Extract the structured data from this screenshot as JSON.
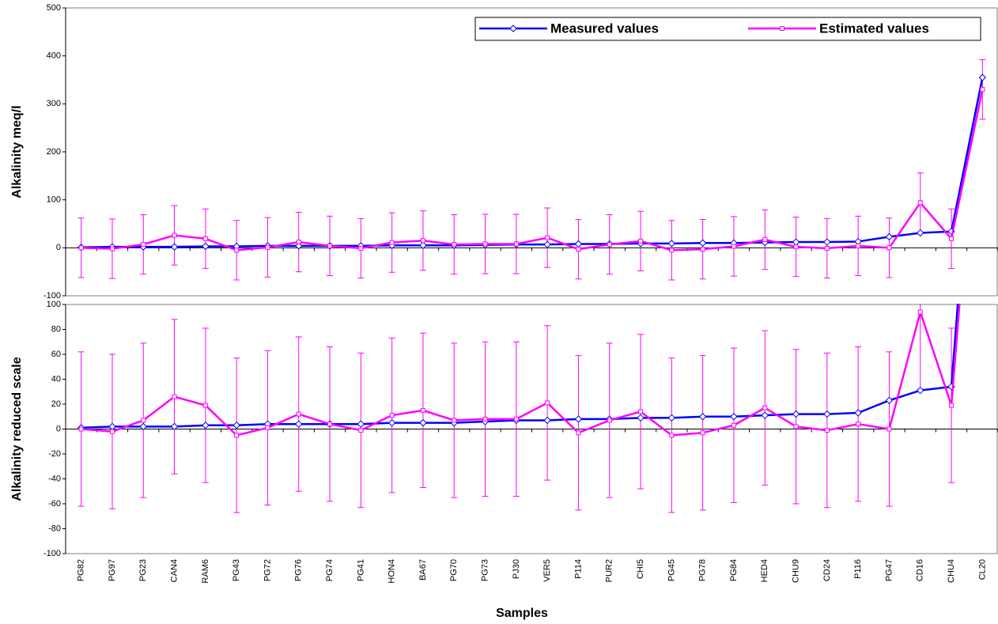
{
  "chart_data": {
    "type": "line",
    "xlabel": "Samples",
    "categories": [
      "PG82",
      "PG97",
      "PG23",
      "CAN4",
      "RAM6",
      "PG43",
      "PG72",
      "PG76",
      "PG74",
      "PG41",
      "HON4",
      "BA67",
      "PG70",
      "PG73",
      "PJ30",
      "VER5",
      "P114",
      "PUR2",
      "CHI5",
      "PG45",
      "PG78",
      "PG84",
      "HED4",
      "CHU9",
      "CD24",
      "P116",
      "PG47",
      "CD16",
      "CHU4",
      "CL20"
    ],
    "series": [
      {
        "name": "Measured values",
        "color": "#0000ff",
        "values": [
          1,
          2,
          2,
          2,
          3,
          3,
          4,
          4,
          4,
          4,
          5,
          5,
          5,
          6,
          7,
          7,
          8,
          8,
          9,
          9,
          10,
          10,
          11,
          12,
          12,
          13,
          23,
          31,
          34,
          355
        ]
      },
      {
        "name": "Estimated values",
        "color": "#ff00ff",
        "error": 62,
        "values": [
          0,
          -2,
          7,
          26,
          19,
          -5,
          1,
          12,
          4,
          -1,
          11,
          15,
          7,
          8,
          8,
          21,
          -3,
          7,
          14,
          -5,
          -3,
          3,
          17,
          2,
          -1,
          4,
          0,
          94,
          19,
          330
        ]
      }
    ],
    "panels": [
      {
        "ylabel": "Alkalinity meq/l",
        "ylim": [
          -100,
          500
        ],
        "yticks": [
          -100,
          0,
          100,
          200,
          300,
          400,
          500
        ]
      },
      {
        "ylabel": "Alkalinity reduced scale",
        "ylim": [
          -100,
          100
        ],
        "yticks": [
          -100,
          -80,
          -60,
          -40,
          -20,
          0,
          20,
          40,
          60,
          80,
          100
        ]
      }
    ]
  }
}
